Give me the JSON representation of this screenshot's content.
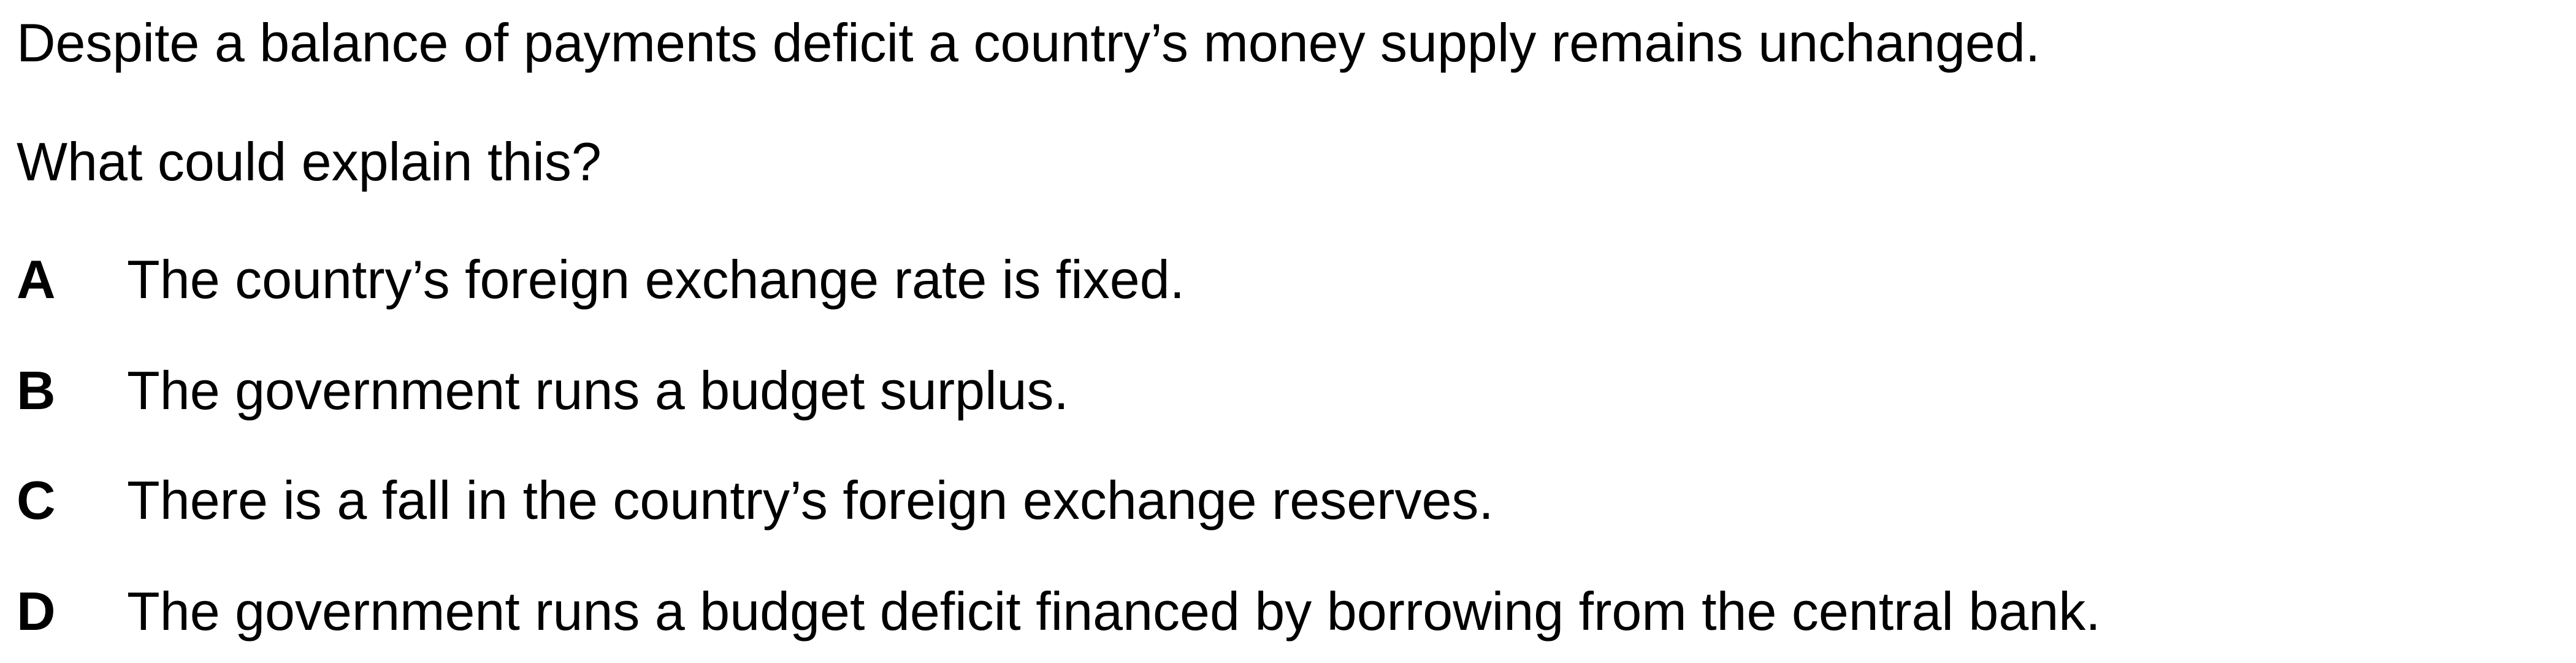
{
  "question": {
    "stem": "Despite a balance of payments deficit a country’s money supply remains unchanged.",
    "prompt": "What could explain this?"
  },
  "options": [
    {
      "letter": "A",
      "text": "The country’s foreign exchange rate is fixed."
    },
    {
      "letter": "B",
      "text": "The government runs a budget surplus."
    },
    {
      "letter": "C",
      "text": "There is a fall in the country’s foreign exchange reserves."
    },
    {
      "letter": "D",
      "text": "The government runs a budget deficit financed by borrowing from the central bank."
    }
  ]
}
